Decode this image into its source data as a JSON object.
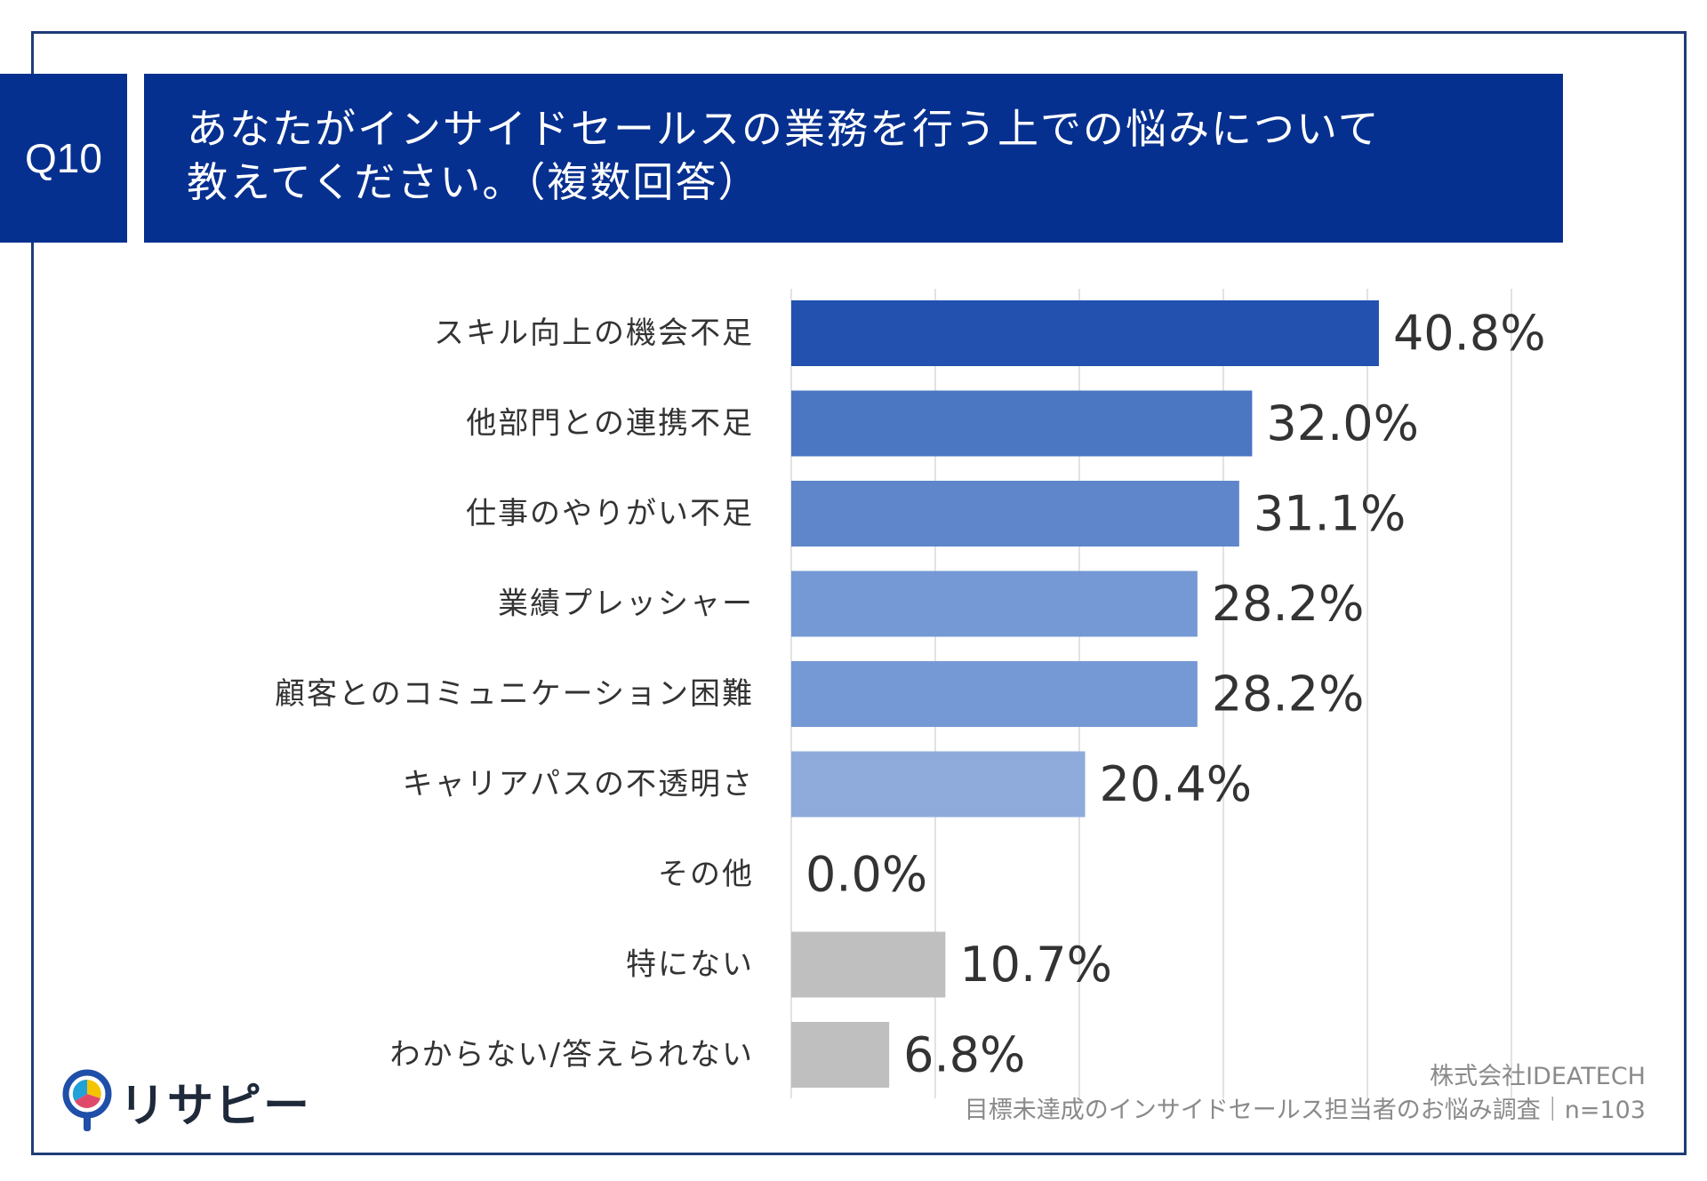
{
  "header": {
    "question_no": "Q10",
    "title_line1": "あなたがインサイドセールスの業務を行う上での悩みについて",
    "title_line2": "教えてください。（複数回答）"
  },
  "chart_data": {
    "type": "bar",
    "orientation": "horizontal",
    "title": "あなたがインサイドセールスの業務を行う上での悩みについて教えてください。（複数回答）",
    "categories": [
      "スキル向上の機会不足",
      "他部門との連携不足",
      "仕事のやりがい不足",
      "業績プレッシャー",
      "顧客とのコミュニケーション困難",
      "キャリアパスの不透明さ",
      "その他",
      "特にない",
      "わからない/答えられない"
    ],
    "values": [
      40.8,
      32.0,
      31.1,
      28.2,
      28.2,
      20.4,
      0.0,
      10.7,
      6.8
    ],
    "value_labels": [
      "40.8%",
      "32.0%",
      "31.1%",
      "28.2%",
      "28.2%",
      "20.4%",
      "0.0%",
      "10.7%",
      "6.8%"
    ],
    "unit": "%",
    "xlim": [
      0,
      50
    ],
    "grid": true,
    "bar_colors": [
      "#2251b0",
      "#4b76c2",
      "#5f86ca",
      "#7599d4",
      "#7599d4",
      "#8eabdc",
      "#8eabdc",
      "#bfbfbf",
      "#bfbfbf"
    ],
    "label_color": "#333333",
    "grid_color": "#d9d9d9"
  },
  "footer": {
    "company": "株式会社IDEATECH",
    "survey": "目標未達成のインサイドセールス担当者のお悩み調査｜n=103"
  },
  "logo": {
    "text": "リサピー",
    "icon": "pin-pie-icon",
    "colors": [
      "#1f4fa8",
      "#f5c400",
      "#e04a6a",
      "#22a0d8"
    ]
  }
}
